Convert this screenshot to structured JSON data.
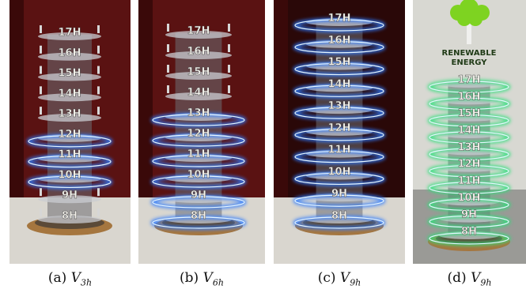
{
  "figure": {
    "panels": [
      {
        "id": "a",
        "caption_prefix": "(a)",
        "caption_var": "V",
        "caption_sub": "3h",
        "floor_labels": [
          "17H",
          "16H",
          "15H",
          "14H",
          "13H",
          "12H",
          "11H",
          "10H",
          "9H",
          "8H"
        ],
        "lit_floors": [
          "12H",
          "11H",
          "10H"
        ],
        "light_color": "#2f7bff",
        "background": "#5a1212"
      },
      {
        "id": "b",
        "caption_prefix": "(b)",
        "caption_var": "V",
        "caption_sub": "6h",
        "floor_labels": [
          "17H",
          "16H",
          "15H",
          "14H",
          "13H",
          "12H",
          "11H",
          "10H",
          "9H",
          "8H"
        ],
        "lit_floors": [
          "13H",
          "12H",
          "11H",
          "10H",
          "9H",
          "8H"
        ],
        "light_color": "#2f7bff",
        "background": "#5a1212"
      },
      {
        "id": "c",
        "caption_prefix": "(c)",
        "caption_var": "V",
        "caption_sub": "9h",
        "floor_labels": [
          "17H",
          "16H",
          "15H",
          "14H",
          "13H",
          "12H",
          "11H",
          "10H",
          "9H",
          "8H"
        ],
        "lit_floors": [
          "17H",
          "16H",
          "15H",
          "14H",
          "13H",
          "12H",
          "11H",
          "10H",
          "9H",
          "8H"
        ],
        "light_color": "#2f7bff",
        "background": "#2a0808"
      },
      {
        "id": "d",
        "caption_prefix": "(d)",
        "caption_var": "V",
        "caption_sub": "9h",
        "floor_labels": [
          "17H",
          "16H",
          "15H",
          "14H",
          "13H",
          "12H",
          "11H",
          "10H",
          "9H",
          "8H"
        ],
        "lit_floors": [
          "17H",
          "16H",
          "15H",
          "14H",
          "13H",
          "12H",
          "11H",
          "10H",
          "9H",
          "8H"
        ],
        "light_color": "#2fe07a",
        "background": "#d8d8d2",
        "sign_lines": [
          "RENEWABLE",
          "ENERGY"
        ]
      }
    ]
  }
}
